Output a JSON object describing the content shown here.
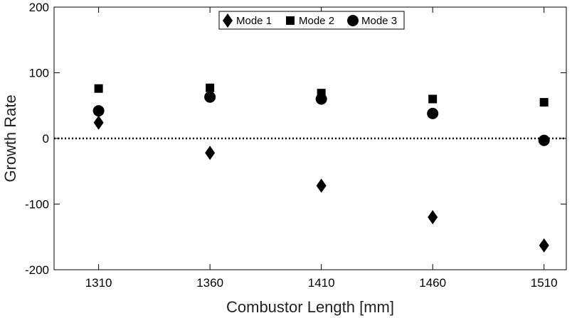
{
  "chart_data": {
    "type": "scatter",
    "title": "",
    "xlabel": "Combustor Length [mm]",
    "ylabel": "Growth Rate",
    "x": [
      1310,
      1360,
      1410,
      1460,
      1510
    ],
    "xticks": [
      "1310",
      "1360",
      "1410",
      "1460",
      "1510"
    ],
    "yticks": [
      "200",
      "100",
      "0",
      "-100",
      "-200"
    ],
    "xlim": [
      1290,
      1520
    ],
    "ylim": [
      -200,
      200
    ],
    "grid": false,
    "reference_line": 0,
    "legend_position": "top-center",
    "series": [
      {
        "name": "Mode 1",
        "marker": "diamond",
        "values": [
          24,
          -22,
          -72,
          -120,
          -163
        ]
      },
      {
        "name": "Mode 2",
        "marker": "square",
        "values": [
          76,
          77,
          69,
          60,
          55
        ]
      },
      {
        "name": "Mode 3",
        "marker": "circle",
        "values": [
          42,
          63,
          60,
          38,
          -3
        ]
      }
    ],
    "colors": {
      "marker": "#000000",
      "axis": "#000000"
    }
  }
}
